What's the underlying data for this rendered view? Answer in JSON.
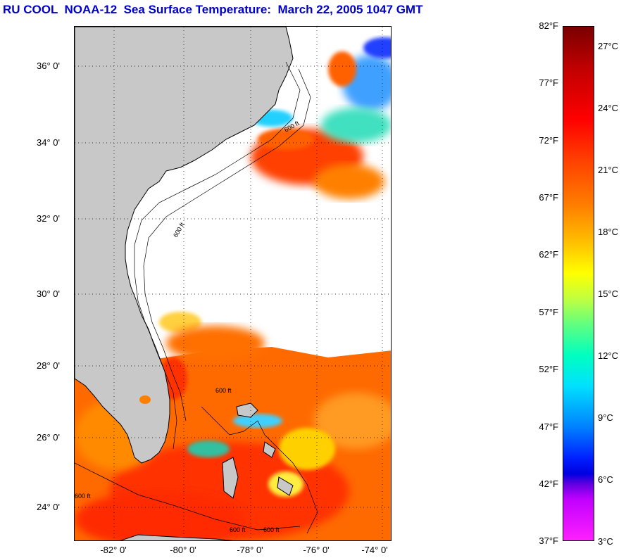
{
  "title": "RU COOL  NOAA-12  Sea Surface Temperature:  March 22, 2005 1047 GMT",
  "map": {
    "lat_labels": [
      "36° 0'",
      "34° 0'",
      "32° 0'",
      "30° 0'",
      "28° 0'",
      "26° 0'",
      "24° 0'"
    ],
    "lon_labels": [
      "-82° 0'",
      "-80° 0'",
      "-78° 0'",
      "-76° 0'",
      "-74° 0'"
    ],
    "land_color": "#c8c8c8",
    "cloud_color": "#ffffff",
    "contour_label": "600 ft"
  },
  "colorbar": {
    "fahrenheit_labels": [
      "82°F",
      "77°F",
      "72°F",
      "67°F",
      "62°F",
      "57°F",
      "52°F",
      "47°F",
      "42°F",
      "37°F"
    ],
    "celsius_labels": [
      "27°C",
      "24°C",
      "21°C",
      "18°C",
      "15°C",
      "12°C",
      "9°C",
      "6°C",
      "3°C"
    ],
    "range_f": [
      37,
      82
    ]
  }
}
